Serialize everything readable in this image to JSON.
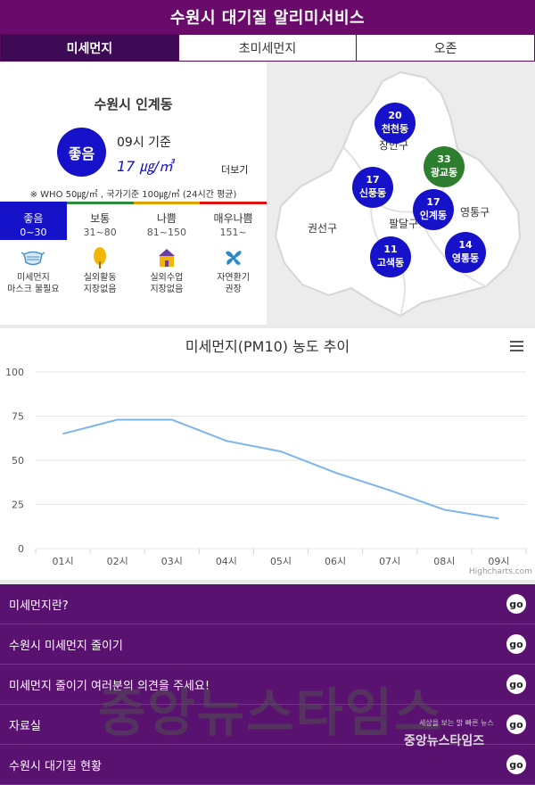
{
  "header": {
    "title": "수원시 대기질 알리미서비스"
  },
  "tabs": [
    {
      "label": "미세먼지"
    },
    {
      "label": "초미세먼지"
    },
    {
      "label": "오존"
    }
  ],
  "status": {
    "location": "수원시 인계동",
    "grade": "좋음",
    "time": "09시 기준",
    "value": "17 ㎍/㎥",
    "more": "더보기",
    "standard": "※ WHO 50㎍/㎥ , 국가기준 100㎍/㎥ (24시간 평균)"
  },
  "levels": [
    {
      "name": "좋음",
      "range": "0~30",
      "color": "#1612c9"
    },
    {
      "name": "보통",
      "range": "31~80",
      "color": "#2e8b3a"
    },
    {
      "name": "나쁨",
      "range": "81~150",
      "color": "#e0a000"
    },
    {
      "name": "매우나쁨",
      "range": "151~",
      "color": "#dd1111"
    }
  ],
  "actions": [
    {
      "line1": "미세먼지",
      "line2": "마스크 불필요",
      "icon": "mask-icon"
    },
    {
      "line1": "실외활동",
      "line2": "지장없음",
      "icon": "tree-icon"
    },
    {
      "line1": "실외수업",
      "line2": "지장없음",
      "icon": "school-icon"
    },
    {
      "line1": "자연환기",
      "line2": "권장",
      "icon": "fan-icon"
    }
  ],
  "map": {
    "districts": [
      "장안구",
      "권선구",
      "팔달구",
      "영통구"
    ],
    "stations": [
      {
        "value": "20",
        "name": "천천동",
        "color": "#1612c9"
      },
      {
        "value": "33",
        "name": "광교동",
        "color": "#2d7f2f"
      },
      {
        "value": "17",
        "name": "신풍동",
        "color": "#1612c9"
      },
      {
        "value": "17",
        "name": "인계동",
        "color": "#1612c9"
      },
      {
        "value": "11",
        "name": "고색동",
        "color": "#1612c9"
      },
      {
        "value": "14",
        "name": "영통동",
        "color": "#1612c9"
      }
    ]
  },
  "chart": {
    "credit": "Highcharts.com"
  },
  "chart_data": {
    "type": "line",
    "title": "미세먼지(PM10) 농도 추이",
    "categories": [
      "01시",
      "02시",
      "03시",
      "04시",
      "05시",
      "06시",
      "07시",
      "08시",
      "09시"
    ],
    "values": [
      65,
      73,
      73,
      61,
      55,
      43,
      33,
      22,
      17
    ],
    "ylim": [
      0,
      100
    ],
    "yticks": [
      "0",
      "25",
      "50",
      "75",
      "100"
    ],
    "grid": true,
    "color": "#7cb5ec"
  },
  "list": [
    {
      "label": "미세먼지란?",
      "go": "go"
    },
    {
      "label": "수원시 미세먼지 줄이기",
      "go": "go"
    },
    {
      "label": "미세먼지 줄이기 여러분의 의견을 주세요!",
      "go": "go"
    },
    {
      "label": "자료실",
      "go": "go"
    },
    {
      "label": "수원시 대기질 현황",
      "go": "go"
    }
  ],
  "watermark": {
    "main": "중앙뉴스타임스",
    "sub": "세상을 보는 밝 빠른 뉴스",
    "small": "중앙뉴스타임즈"
  }
}
